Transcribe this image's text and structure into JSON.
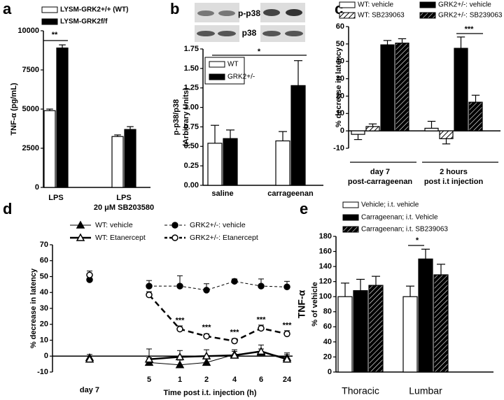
{
  "chart_data": [
    {
      "type": "bar",
      "panel_label": "a",
      "ylabel": "TNF-α (pg/mL)",
      "categories": [
        "LPS",
        "LPS"
      ],
      "category_sublabels": [
        null,
        "20 μM SB203580"
      ],
      "series": [
        {
          "name": "LYSM-GRK2+/+ (WT)",
          "color": "#ffffff",
          "values": [
            4900,
            3250
          ],
          "errors": [
            100,
            100
          ]
        },
        {
          "name": "LYSM-GRK2f/f",
          "color": "#000000",
          "values": [
            8900,
            3700
          ],
          "errors": [
            200,
            180
          ]
        }
      ],
      "ylim": [
        0,
        10000
      ],
      "yticks": [
        0,
        2500,
        5000,
        7500,
        10000
      ],
      "annotations": [
        "**"
      ]
    },
    {
      "type": "bar",
      "panel_label": "b",
      "ylabel": [
        "p-p38/p38",
        "(Arbitrary Units)"
      ],
      "blot_labels": [
        "p-p38",
        "p38"
      ],
      "categories": [
        "saline",
        "carrageenan"
      ],
      "series": [
        {
          "name": "WT",
          "color": "#ffffff",
          "values": [
            0.54,
            0.57
          ],
          "errors": [
            0.23,
            0.12
          ]
        },
        {
          "name": "GRK2+/-",
          "color": "#000000",
          "values": [
            0.6,
            1.28
          ],
          "errors": [
            0.11,
            0.32
          ]
        }
      ],
      "ylim": [
        0,
        1.75
      ],
      "yticks": [
        {
          "value": 0,
          "label": "0.00"
        },
        {
          "value": 0.25,
          "label": "0.25"
        },
        {
          "value": 0.5,
          "label": "0.50"
        },
        {
          "value": 0.75,
          "label": "0.75"
        },
        {
          "value": 1,
          "label": "1.00"
        },
        {
          "value": 1.25,
          "label": "1.25"
        },
        {
          "value": 1.5,
          "label": "1.50"
        },
        {
          "value": 1.75,
          "label": "1.75"
        }
      ],
      "annotations": [
        "*"
      ]
    },
    {
      "type": "bar",
      "panel_label": "c",
      "ylabel": "% decrease in latency",
      "categories": [
        "day 7",
        "2 hours"
      ],
      "category_sublabels": [
        "post-carrageenan",
        "post i.t injection"
      ],
      "series": [
        {
          "name": "WT: vehicle",
          "color": "#ffffff",
          "values": [
            -2,
            1.5
          ],
          "errors": [
            3,
            4
          ]
        },
        {
          "name": "WT: SB239063",
          "color": "#ffffff",
          "hatch": true,
          "values": [
            2.5,
            -4.5
          ],
          "errors": [
            1.5,
            3
          ]
        },
        {
          "name": "GRK2+/-: vehicle",
          "color": "#000000",
          "values": [
            49.5,
            47.5
          ],
          "errors": [
            2.5,
            6.5
          ]
        },
        {
          "name": "GRK2+/-: SB239063",
          "color": "#000000",
          "hatch": true,
          "values": [
            50.5,
            16.5
          ],
          "errors": [
            2.5,
            4
          ]
        }
      ],
      "ylim": [
        -10,
        60
      ],
      "yticks": [
        -10,
        0,
        10,
        20,
        30,
        40,
        50,
        60
      ],
      "annotations": [
        "***"
      ]
    },
    {
      "type": "line",
      "panel_label": "d",
      "ylabel": "% decrease in latency",
      "xlabel": "Time post i.t. injection (h)",
      "categories": [
        "day 7",
        "5",
        "1",
        "2",
        "4",
        "6",
        "24"
      ],
      "series": [
        {
          "name": "WT: vehicle",
          "color": "#000000",
          "marker": "triangle",
          "filled": true,
          "dashed": false,
          "line_width": 1,
          "values": [
            -1,
            -4,
            -5.5,
            -4,
            1,
            2.5,
            -1
          ],
          "errors": [
            2,
            3,
            3,
            3,
            2,
            2,
            2
          ]
        },
        {
          "name": "WT: Etanercept",
          "color": "#000000",
          "marker": "triangle",
          "filled": false,
          "dashed": false,
          "line_width": 2.5,
          "values": [
            -2,
            -2,
            -0.5,
            0,
            0.5,
            3,
            -2
          ],
          "errors": [
            2,
            6.5,
            4,
            4,
            3.5,
            4,
            4
          ]
        },
        {
          "name": "GRK2+/-: vehicle",
          "color": "#000000",
          "marker": "circle",
          "filled": true,
          "dashed": true,
          "line_width": 1,
          "values": [
            48,
            44,
            44,
            41.5,
            47,
            44,
            43.5
          ],
          "errors": [
            2,
            3.5,
            6.5,
            4,
            1.5,
            4.5,
            3.5
          ]
        },
        {
          "name": "GRK2+/-: Etanercept",
          "color": "#000000",
          "marker": "circle",
          "filled": false,
          "dashed": true,
          "line_width": 2.5,
          "values": [
            51,
            38.5,
            17,
            12.5,
            9.5,
            17.5,
            14
          ],
          "errors": [
            2.5,
            2,
            2,
            1.5,
            1.5,
            2,
            2
          ]
        }
      ],
      "ylim": [
        -10,
        70
      ],
      "yticks": [
        -10,
        0,
        10,
        20,
        30,
        40,
        50,
        60,
        70
      ],
      "annotations": [
        "***",
        "***",
        "***",
        "***",
        "***"
      ]
    },
    {
      "type": "bar",
      "panel_label": "e",
      "ylabel": [
        "TNF-α",
        "% of vehicle"
      ],
      "categories": [
        "Thoracic",
        "Lumbar"
      ],
      "series": [
        {
          "name": "Vehicle; i.t. vehicle",
          "color": "#ffffff",
          "values": [
            100,
            100
          ],
          "errors": [
            18,
            14
          ]
        },
        {
          "name": "Carrageenan; i.t. Vehicle",
          "color": "#000000",
          "values": [
            108,
            150
          ],
          "errors": [
            15,
            13
          ]
        },
        {
          "name": "Carrageenan; i.t. SB239063",
          "color": "#000000",
          "hatch": true,
          "values": [
            115,
            129
          ],
          "errors": [
            12,
            14
          ]
        }
      ],
      "ylim": [
        0,
        180
      ],
      "yticks": [
        0,
        20,
        40,
        60,
        80,
        100,
        120,
        140,
        160,
        180
      ],
      "annotations": [
        "*"
      ]
    }
  ]
}
